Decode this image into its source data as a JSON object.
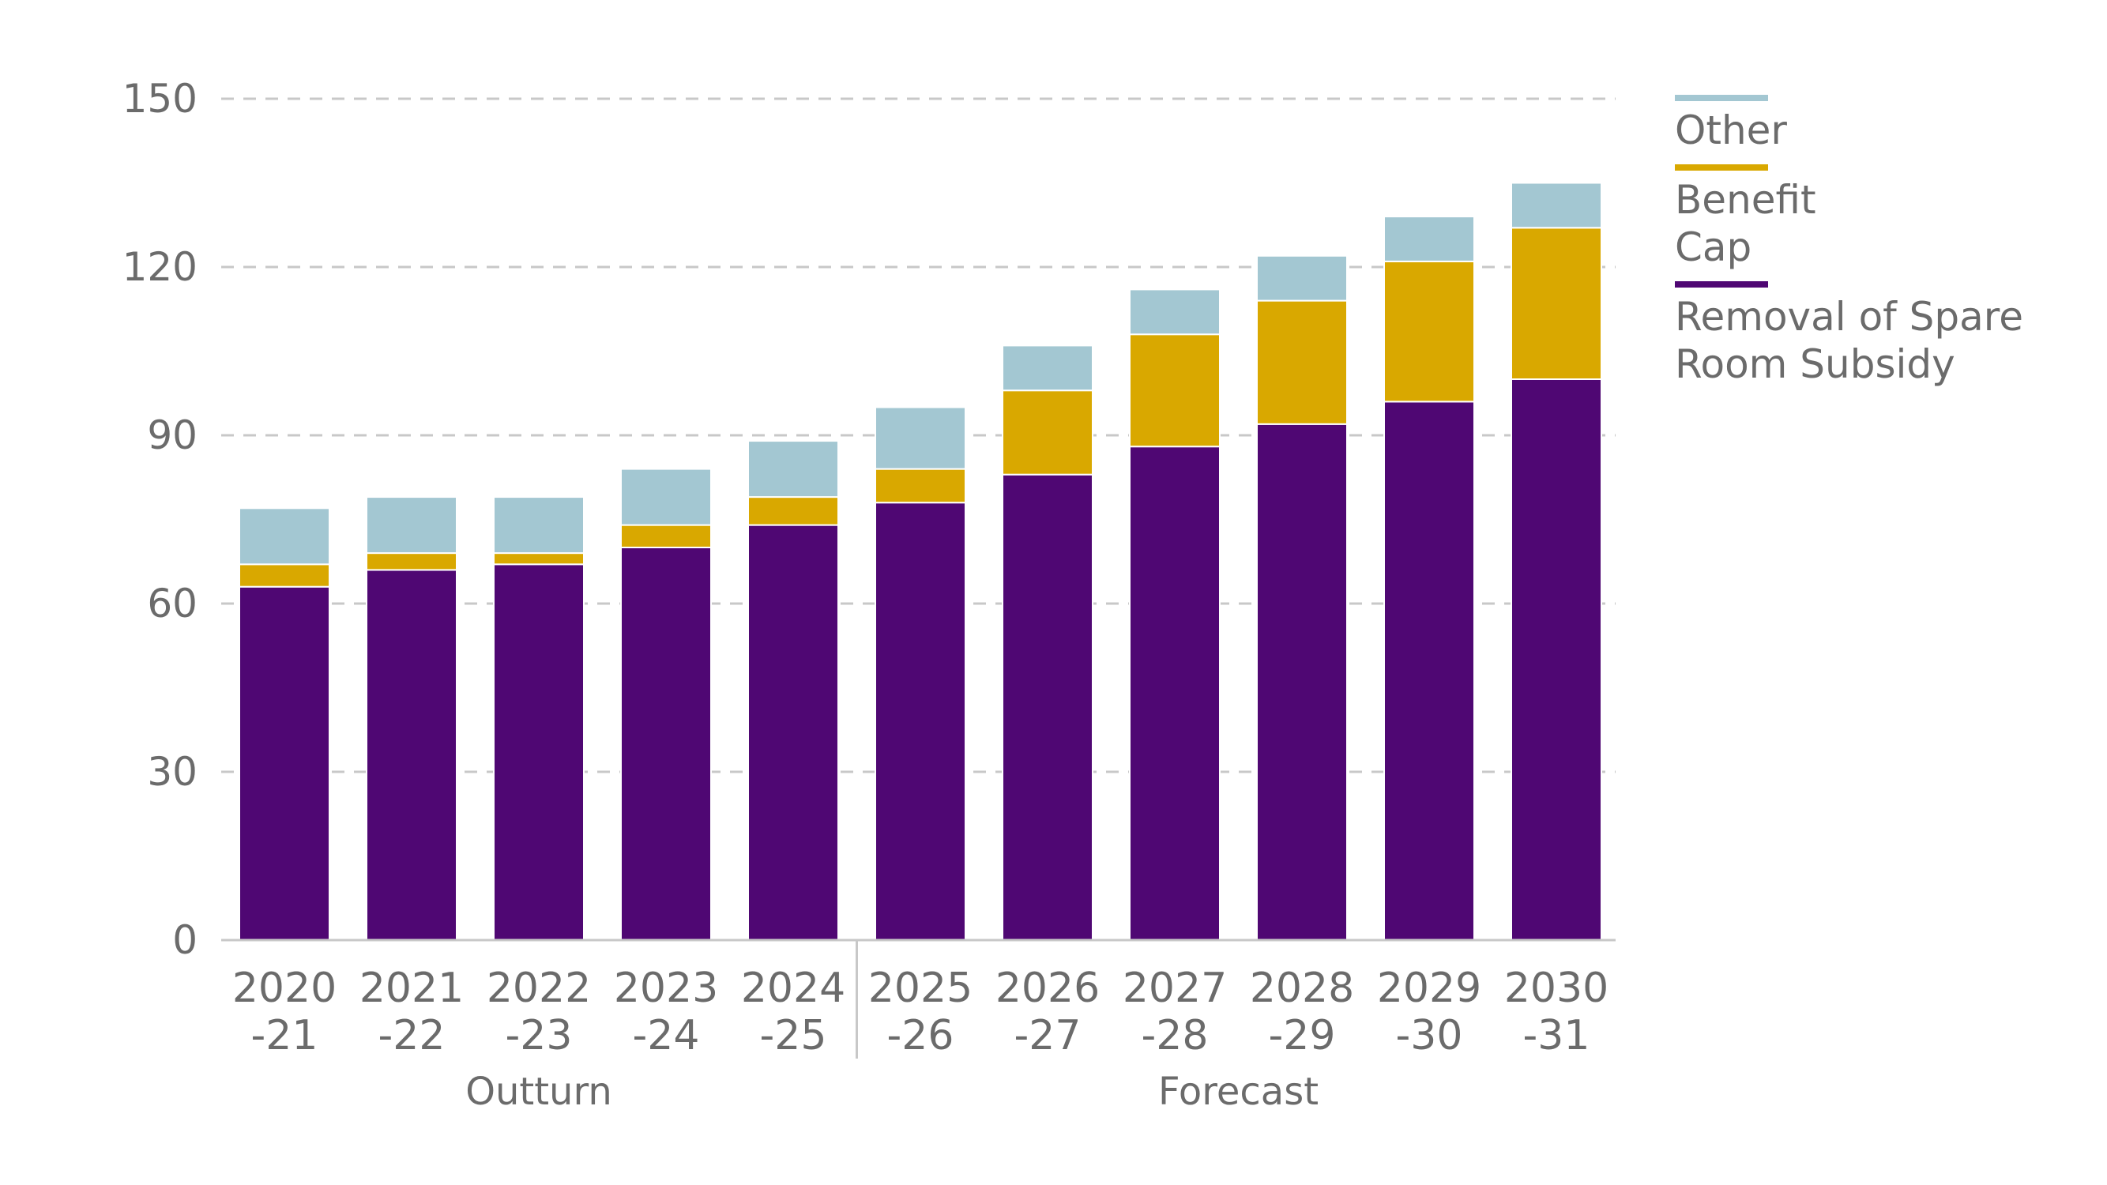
{
  "chart_data": {
    "type": "bar",
    "stacked": true,
    "title": "",
    "xlabel": "",
    "ylabel": "",
    "ylim": [
      0,
      150
    ],
    "yticks": [
      0,
      30,
      60,
      90,
      120,
      150
    ],
    "grid": true,
    "legend_position": "right",
    "categories": [
      [
        "2020",
        "-21"
      ],
      [
        "2021",
        "-22"
      ],
      [
        "2022",
        "-23"
      ],
      [
        "2023",
        "-24"
      ],
      [
        "2024",
        "-25"
      ],
      [
        "2025",
        "-26"
      ],
      [
        "2026",
        "-27"
      ],
      [
        "2027",
        "-28"
      ],
      [
        "2028",
        "-29"
      ],
      [
        "2029",
        "-30"
      ],
      [
        "2030",
        "-31"
      ]
    ],
    "groups": [
      {
        "label": "Outturn",
        "start": 0,
        "end": 4
      },
      {
        "label": "Forecast",
        "start": 5,
        "end": 10
      }
    ],
    "series": [
      {
        "name": "Removal of Spare Room Subsidy",
        "legend_lines": [
          "Removal of Spare",
          "Room Subsidy"
        ],
        "color": "#4f0773",
        "values": [
          63,
          66,
          67,
          70,
          74,
          78,
          83,
          88,
          92,
          96,
          100
        ]
      },
      {
        "name": "Benefit Cap",
        "legend_lines": [
          "Benefit",
          "Cap"
        ],
        "color": "#d9a800",
        "values": [
          4,
          3,
          2,
          4,
          5,
          6,
          15,
          20,
          22,
          25,
          27
        ]
      },
      {
        "name": "Other",
        "legend_lines": [
          "Other"
        ],
        "color": "#a3c7d2",
        "values": [
          10,
          10,
          10,
          10,
          10,
          11,
          8,
          8,
          8,
          8,
          8
        ]
      }
    ],
    "legend_order": [
      2,
      1,
      0
    ]
  }
}
